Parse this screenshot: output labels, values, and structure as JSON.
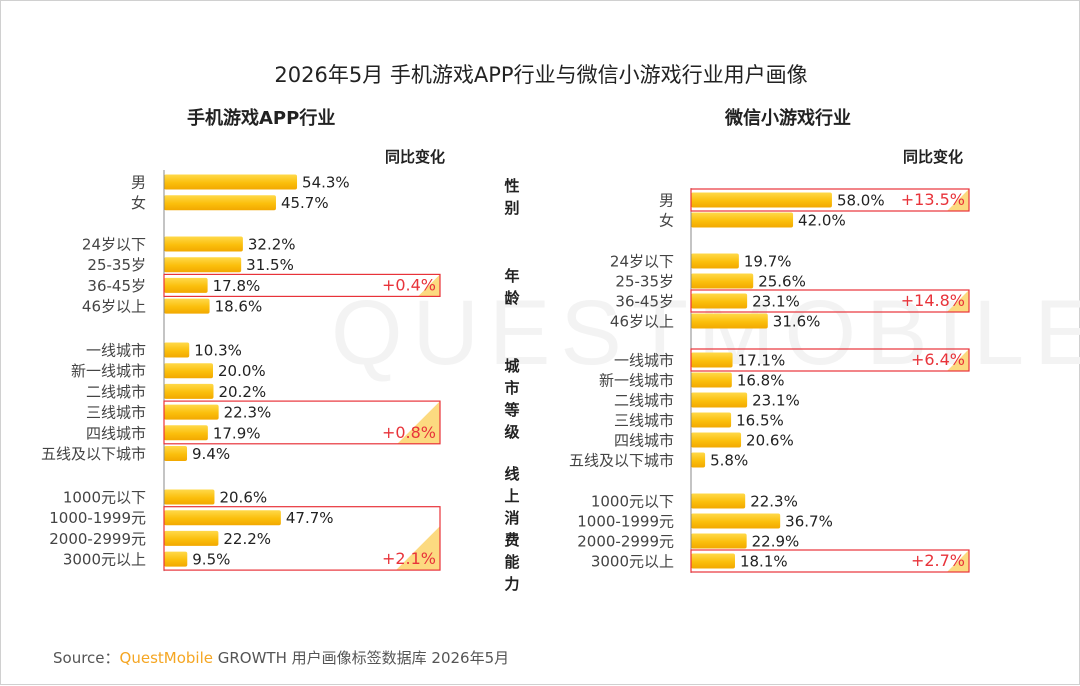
{
  "title": "2026年5月 手机游戏APP行业与微信小游戏行业用户画像",
  "watermark": "QUESTMOBILE",
  "yoy_label": "同比变化",
  "category_labels": [
    "性别",
    "年龄",
    "城市等级",
    "线上消费能力"
  ],
  "source": {
    "prefix": "Source：",
    "brand": "QuestMobile",
    "rest": " GROWTH 用户画像标签数据库 2026年5月"
  },
  "colors": {
    "bar": "#fbbf0c",
    "highlight_box": "#e8333a",
    "yoy_text": "#e8333a",
    "corner": "#fcd36a"
  },
  "chart_data": [
    {
      "type": "bar",
      "orientation": "horizontal",
      "title": "手机游戏APP行业",
      "unit": "%",
      "groups": [
        {
          "name": "性别",
          "categories": [
            "男",
            "女"
          ],
          "values": [
            54.3,
            45.7
          ],
          "labels": [
            "54.3%",
            "45.7%"
          ]
        },
        {
          "name": "年龄",
          "categories": [
            "24岁以下",
            "25-35岁",
            "36-45岁",
            "46岁以上"
          ],
          "values": [
            32.2,
            31.5,
            17.8,
            18.6
          ],
          "labels": [
            "32.2%",
            "31.5%",
            "17.8%",
            "18.6%"
          ]
        },
        {
          "name": "城市等级",
          "categories": [
            "一线城市",
            "新一线城市",
            "二线城市",
            "三线城市",
            "四线城市",
            "五线及以下城市"
          ],
          "values": [
            10.3,
            20.0,
            20.2,
            22.3,
            17.9,
            9.4
          ],
          "labels": [
            "10.3%",
            "20.0%",
            "20.2%",
            "22.3%",
            "17.9%",
            "9.4%"
          ]
        },
        {
          "name": "线上消费能力",
          "categories": [
            "1000元以下",
            "1000-1999元",
            "2000-2999元",
            "3000元以上"
          ],
          "values": [
            20.6,
            47.7,
            22.2,
            9.5
          ],
          "labels": [
            "20.6%",
            "47.7%",
            "22.2%",
            "9.5%"
          ]
        }
      ],
      "yoy_highlights": [
        {
          "group": "年龄",
          "categories": [
            "36-45岁"
          ],
          "change": "+0.4%"
        },
        {
          "group": "城市等级",
          "categories": [
            "三线城市",
            "四线城市"
          ],
          "change": "+0.8%"
        },
        {
          "group": "线上消费能力",
          "categories": [
            "1000-1999元",
            "2000-2999元",
            "3000元以上"
          ],
          "change": "+2.1%"
        }
      ]
    },
    {
      "type": "bar",
      "orientation": "horizontal",
      "title": "微信小游戏行业",
      "unit": "%",
      "groups": [
        {
          "name": "性别",
          "categories": [
            "男",
            "女"
          ],
          "values": [
            58.0,
            42.0
          ],
          "labels": [
            "58.0%",
            "42.0%"
          ]
        },
        {
          "name": "年龄",
          "categories": [
            "24岁以下",
            "25-35岁",
            "36-45岁",
            "46岁以上"
          ],
          "values": [
            19.7,
            25.6,
            23.1,
            31.6
          ],
          "labels": [
            "19.7%",
            "25.6%",
            "23.1%",
            "31.6%"
          ]
        },
        {
          "name": "城市等级",
          "categories": [
            "一线城市",
            "新一线城市",
            "二线城市",
            "三线城市",
            "四线城市",
            "五线及以下城市"
          ],
          "values": [
            17.1,
            16.8,
            23.1,
            16.5,
            20.6,
            5.8
          ],
          "labels": [
            "17.1%",
            "16.8%",
            "23.1%",
            "16.5%",
            "20.6%",
            "5.8%"
          ]
        },
        {
          "name": "线上消费能力",
          "categories": [
            "1000元以下",
            "1000-1999元",
            "2000-2999元",
            "3000元以上"
          ],
          "values": [
            22.3,
            36.7,
            22.9,
            18.1
          ],
          "labels": [
            "22.3%",
            "36.7%",
            "22.9%",
            "18.1%"
          ]
        }
      ],
      "yoy_highlights": [
        {
          "group": "性别",
          "categories": [
            "男"
          ],
          "change": "+13.5%"
        },
        {
          "group": "年龄",
          "categories": [
            "36-45岁"
          ],
          "change": "+14.8%"
        },
        {
          "group": "城市等级",
          "categories": [
            "一线城市"
          ],
          "change": "+6.4%"
        },
        {
          "group": "线上消费能力",
          "categories": [
            "3000元以上"
          ],
          "change": "+2.7%"
        }
      ]
    }
  ]
}
